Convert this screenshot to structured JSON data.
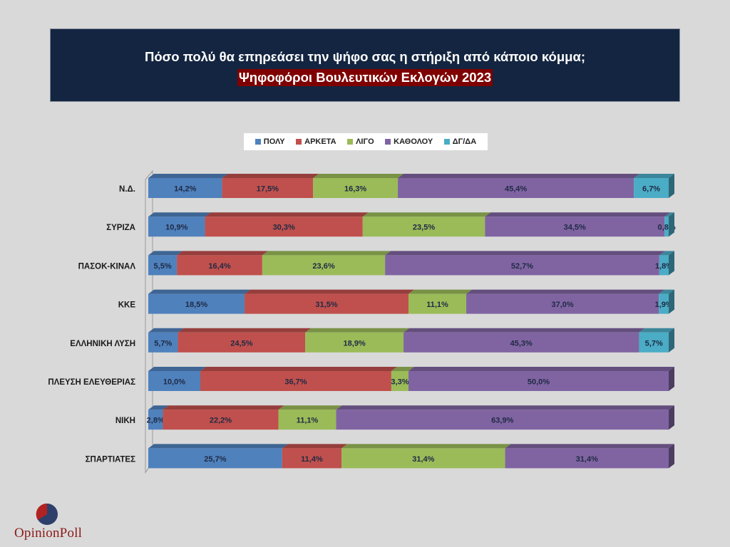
{
  "title": {
    "line1": "Πόσο πολύ θα επηρεάσει την ψήφο σας η στήριξη από κάποιο κόμμα;",
    "line2": "Ψηφοφόροι Βουλευτικών Εκλογών 2023"
  },
  "colors": {
    "title_bg": "#132540",
    "subtitle_bg": "#7f0000",
    "background": "#d9d9d9"
  },
  "logo": {
    "text": "OpinionPoll"
  },
  "chart_data": {
    "type": "bar",
    "orientation": "horizontal",
    "stacked": "percent",
    "title": "Πόσο πολύ θα επηρεάσει την ψήφο σας η στήριξη από κάποιο κόμμα;",
    "subtitle": "Ψηφοφόροι Βουλευτικών Εκλογών 2023",
    "xlabel": "",
    "ylabel": "",
    "legend_position": "top",
    "grid": false,
    "categories": [
      "Ν.Δ.",
      "ΣΥΡΙΖΑ",
      "ΠΑΣΟΚ-ΚΙΝΑΛ",
      "ΚΚΕ",
      "ΕΛΛΗΝΙΚΗ ΛΥΣΗ",
      "ΠΛΕΥΣΗ ΕΛΕΥΘΕΡΙΑΣ",
      "ΝΙΚΗ",
      "ΣΠΑΡΤΙΑΤΕΣ"
    ],
    "series": [
      {
        "name": "ΠΟΛΥ",
        "color": "#4f81bd",
        "values": [
          14.2,
          10.9,
          5.5,
          18.5,
          5.7,
          10.0,
          2.8,
          25.7
        ]
      },
      {
        "name": "ΑΡΚΕΤΑ",
        "color": "#c0504d",
        "values": [
          17.5,
          30.3,
          16.4,
          31.5,
          24.5,
          36.7,
          22.2,
          11.4
        ]
      },
      {
        "name": "ΛΙΓΟ",
        "color": "#9bbb59",
        "values": [
          16.3,
          23.5,
          23.6,
          11.1,
          18.9,
          3.3,
          11.1,
          31.4
        ]
      },
      {
        "name": "ΚΑΘΟΛΟΥ",
        "color": "#8064a2",
        "values": [
          45.4,
          34.5,
          52.7,
          37.0,
          45.3,
          50.0,
          63.9,
          31.4
        ]
      },
      {
        "name": "ΔΓ/ΔΑ",
        "color": "#4bacc6",
        "values": [
          6.7,
          0.8,
          1.8,
          1.9,
          5.7,
          null,
          null,
          null
        ]
      }
    ],
    "data_labels": [
      [
        "14,2%",
        "17,5%",
        "16,3%",
        "45,4%",
        "6,7%"
      ],
      [
        "10,9%",
        "30,3%",
        "23,5%",
        "34,5%",
        "0,8%"
      ],
      [
        "5,5%",
        "16,4%",
        "23,6%",
        "52,7%",
        "1,8%"
      ],
      [
        "18,5%",
        "31,5%",
        "11,1%",
        "37,0%",
        "1,9%"
      ],
      [
        "5,7%",
        "24,5%",
        "18,9%",
        "45,3%",
        "5,7%"
      ],
      [
        "10,0%",
        "36,7%",
        "3,3%",
        "50,0%",
        ""
      ],
      [
        "2,8%",
        "22,2%",
        "11,1%",
        "63,9%",
        ""
      ],
      [
        "25,7%",
        "11,4%",
        "31,4%",
        "31,4%",
        ""
      ]
    ]
  }
}
